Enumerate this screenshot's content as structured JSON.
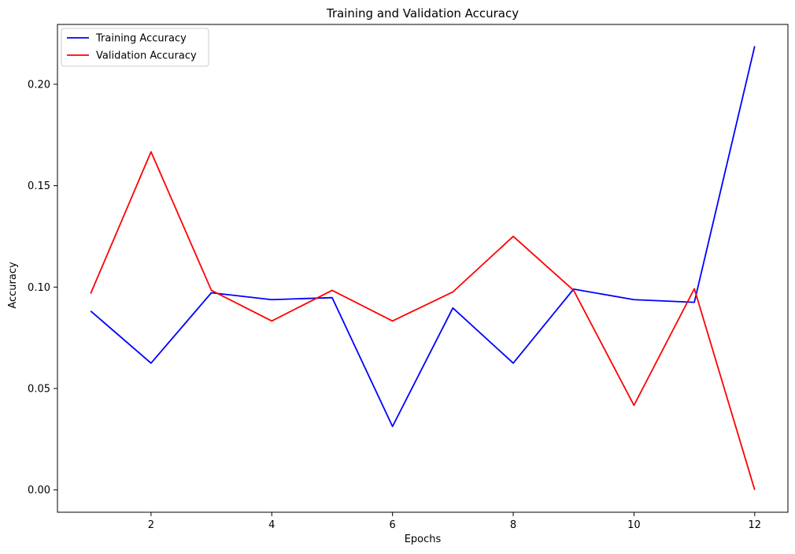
{
  "chart_data": {
    "type": "line",
    "title": "Training and Validation Accuracy",
    "xlabel": "Epochs",
    "ylabel": "Accuracy",
    "x": [
      1,
      2,
      3,
      4,
      5,
      6,
      7,
      8,
      9,
      10,
      11,
      12
    ],
    "xlim": [
      0.45,
      12.55
    ],
    "ylim": [
      -0.011,
      0.2295
    ],
    "xticks": [
      2,
      4,
      6,
      8,
      10,
      12
    ],
    "xtick_labels": [
      "2",
      "4",
      "6",
      "8",
      "10",
      "12"
    ],
    "yticks": [
      0.0,
      0.05,
      0.1,
      0.15,
      0.2
    ],
    "ytick_labels": [
      "0.00",
      "0.05",
      "0.10",
      "0.15",
      "0.20"
    ],
    "grid": false,
    "legend_position": "top-left",
    "series": [
      {
        "name": "Training Accuracy",
        "color": "#0000ff",
        "values": [
          0.0882,
          0.0625,
          0.0972,
          0.0938,
          0.0948,
          0.0313,
          0.0897,
          0.0625,
          0.099,
          0.0938,
          0.0925,
          0.2188
        ]
      },
      {
        "name": "Validation Accuracy",
        "color": "#ff0000",
        "values": [
          0.0968,
          0.1667,
          0.0984,
          0.0833,
          0.0984,
          0.0833,
          0.0976,
          0.125,
          0.0984,
          0.0417,
          0.0992,
          0.0
        ]
      }
    ]
  }
}
